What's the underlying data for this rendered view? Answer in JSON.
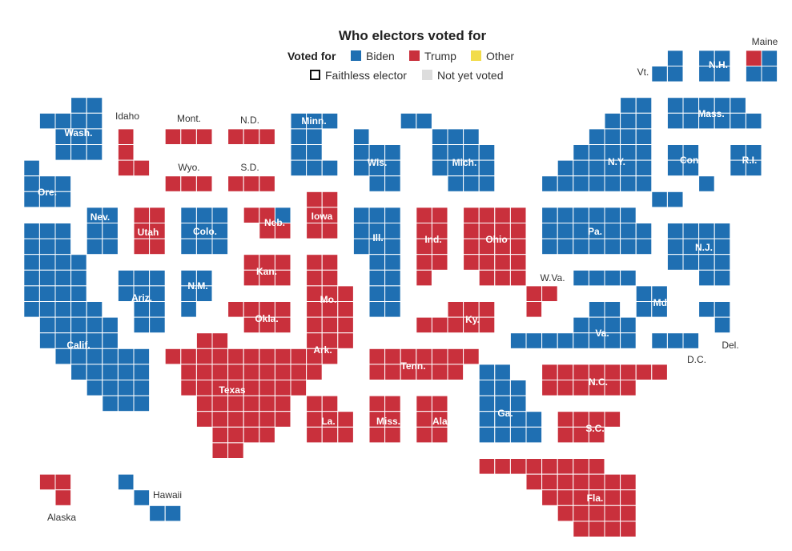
{
  "title": "Who electors voted for",
  "legend": {
    "voted_for_label": "Voted for",
    "biden": "Biden",
    "trump": "Trump",
    "other": "Other",
    "faithless": "Faithless elector",
    "not_yet": "Not yet voted"
  },
  "colors": {
    "biden": "#1f6fb2",
    "trump": "#c9303c",
    "other": "#f2dc4a",
    "not_yet": "#dddddd"
  },
  "states": [
    {
      "id": "wash",
      "label": "Wash.",
      "winner": "biden",
      "electors": 12
    },
    {
      "id": "ore",
      "label": "Ore.",
      "winner": "biden",
      "electors": 7
    },
    {
      "id": "calif",
      "label": "Calif.",
      "winner": "biden",
      "electors": 55
    },
    {
      "id": "nev",
      "label": "Nev.",
      "winner": "biden",
      "electors": 6
    },
    {
      "id": "idaho",
      "label": "Idaho",
      "winner": "trump",
      "electors": 4
    },
    {
      "id": "mont",
      "label": "Mont.",
      "winner": "trump",
      "electors": 3
    },
    {
      "id": "wyo",
      "label": "Wyo.",
      "winner": "trump",
      "electors": 3
    },
    {
      "id": "utah",
      "label": "Utah",
      "winner": "trump",
      "electors": 6
    },
    {
      "id": "colo",
      "label": "Colo.",
      "winner": "biden",
      "electors": 9
    },
    {
      "id": "ariz",
      "label": "Ariz.",
      "winner": "biden",
      "electors": 11
    },
    {
      "id": "nm",
      "label": "N.M.",
      "winner": "biden",
      "electors": 5
    },
    {
      "id": "nd",
      "label": "N.D.",
      "winner": "trump",
      "electors": 3
    },
    {
      "id": "sd",
      "label": "S.D.",
      "winner": "trump",
      "electors": 3
    },
    {
      "id": "neb",
      "label": "Neb.",
      "winner": "trump",
      "electors": 5,
      "split": {
        "trump": 4,
        "biden": 1
      }
    },
    {
      "id": "kan",
      "label": "Kan.",
      "winner": "trump",
      "electors": 6
    },
    {
      "id": "okla",
      "label": "Okla.",
      "winner": "trump",
      "electors": 7
    },
    {
      "id": "texas",
      "label": "Texas",
      "winner": "trump",
      "electors": 38
    },
    {
      "id": "minn",
      "label": "Minn.",
      "winner": "biden",
      "electors": 10
    },
    {
      "id": "iowa",
      "label": "Iowa",
      "winner": "trump",
      "electors": 6
    },
    {
      "id": "mo",
      "label": "Mo.",
      "winner": "trump",
      "electors": 10
    },
    {
      "id": "ark",
      "label": "Ark.",
      "winner": "trump",
      "electors": 6
    },
    {
      "id": "la",
      "label": "La.",
      "winner": "trump",
      "electors": 8
    },
    {
      "id": "wis",
      "label": "Wis.",
      "winner": "biden",
      "electors": 10
    },
    {
      "id": "ill",
      "label": "Ill.",
      "winner": "biden",
      "electors": 20
    },
    {
      "id": "mich",
      "label": "Mich.",
      "winner": "biden",
      "electors": 16
    },
    {
      "id": "ind",
      "label": "Ind.",
      "winner": "trump",
      "electors": 11
    },
    {
      "id": "ohio",
      "label": "Ohio",
      "winner": "trump",
      "electors": 18
    },
    {
      "id": "ky",
      "label": "Ky.",
      "winner": "trump",
      "electors": 8
    },
    {
      "id": "tenn",
      "label": "Tenn.",
      "winner": "trump",
      "electors": 11
    },
    {
      "id": "miss",
      "label": "Miss.",
      "winner": "trump",
      "electors": 6
    },
    {
      "id": "ala",
      "label": "Ala.",
      "winner": "trump",
      "electors": 9
    },
    {
      "id": "ga",
      "label": "Ga.",
      "winner": "biden",
      "electors": 16
    },
    {
      "id": "fla",
      "label": "Fla.",
      "winner": "trump",
      "electors": 29
    },
    {
      "id": "sc",
      "label": "S.C.",
      "winner": "trump",
      "electors": 9
    },
    {
      "id": "nc",
      "label": "N.C.",
      "winner": "trump",
      "electors": 15
    },
    {
      "id": "va",
      "label": "Va.",
      "winner": "biden",
      "electors": 13
    },
    {
      "id": "wva",
      "label": "W.Va.",
      "winner": "trump",
      "electors": 5
    },
    {
      "id": "md",
      "label": "Md.",
      "winner": "biden",
      "electors": 10
    },
    {
      "id": "dc",
      "label": "D.C.",
      "winner": "biden",
      "electors": 3
    },
    {
      "id": "del",
      "label": "Del.",
      "winner": "biden",
      "electors": 3
    },
    {
      "id": "pa",
      "label": "Pa.",
      "winner": "biden",
      "electors": 20
    },
    {
      "id": "nj",
      "label": "N.J.",
      "winner": "biden",
      "electors": 14
    },
    {
      "id": "ny",
      "label": "N.Y.",
      "winner": "biden",
      "electors": 29
    },
    {
      "id": "conn",
      "label": "Conn.",
      "winner": "biden",
      "electors": 7
    },
    {
      "id": "ri",
      "label": "R.I.",
      "winner": "biden",
      "electors": 4
    },
    {
      "id": "mass",
      "label": "Mass.",
      "winner": "biden",
      "electors": 11
    },
    {
      "id": "vt",
      "label": "Vt.",
      "winner": "biden",
      "electors": 3
    },
    {
      "id": "nh",
      "label": "N.H.",
      "winner": "biden",
      "electors": 4
    },
    {
      "id": "maine",
      "label": "Maine",
      "winner": "biden",
      "electors": 4,
      "split": {
        "biden": 3,
        "trump": 1
      }
    },
    {
      "id": "alaska",
      "label": "Alaska",
      "winner": "trump",
      "electors": 3
    },
    {
      "id": "hawaii",
      "label": "Hawaii",
      "winner": "biden",
      "electors": 4
    }
  ]
}
